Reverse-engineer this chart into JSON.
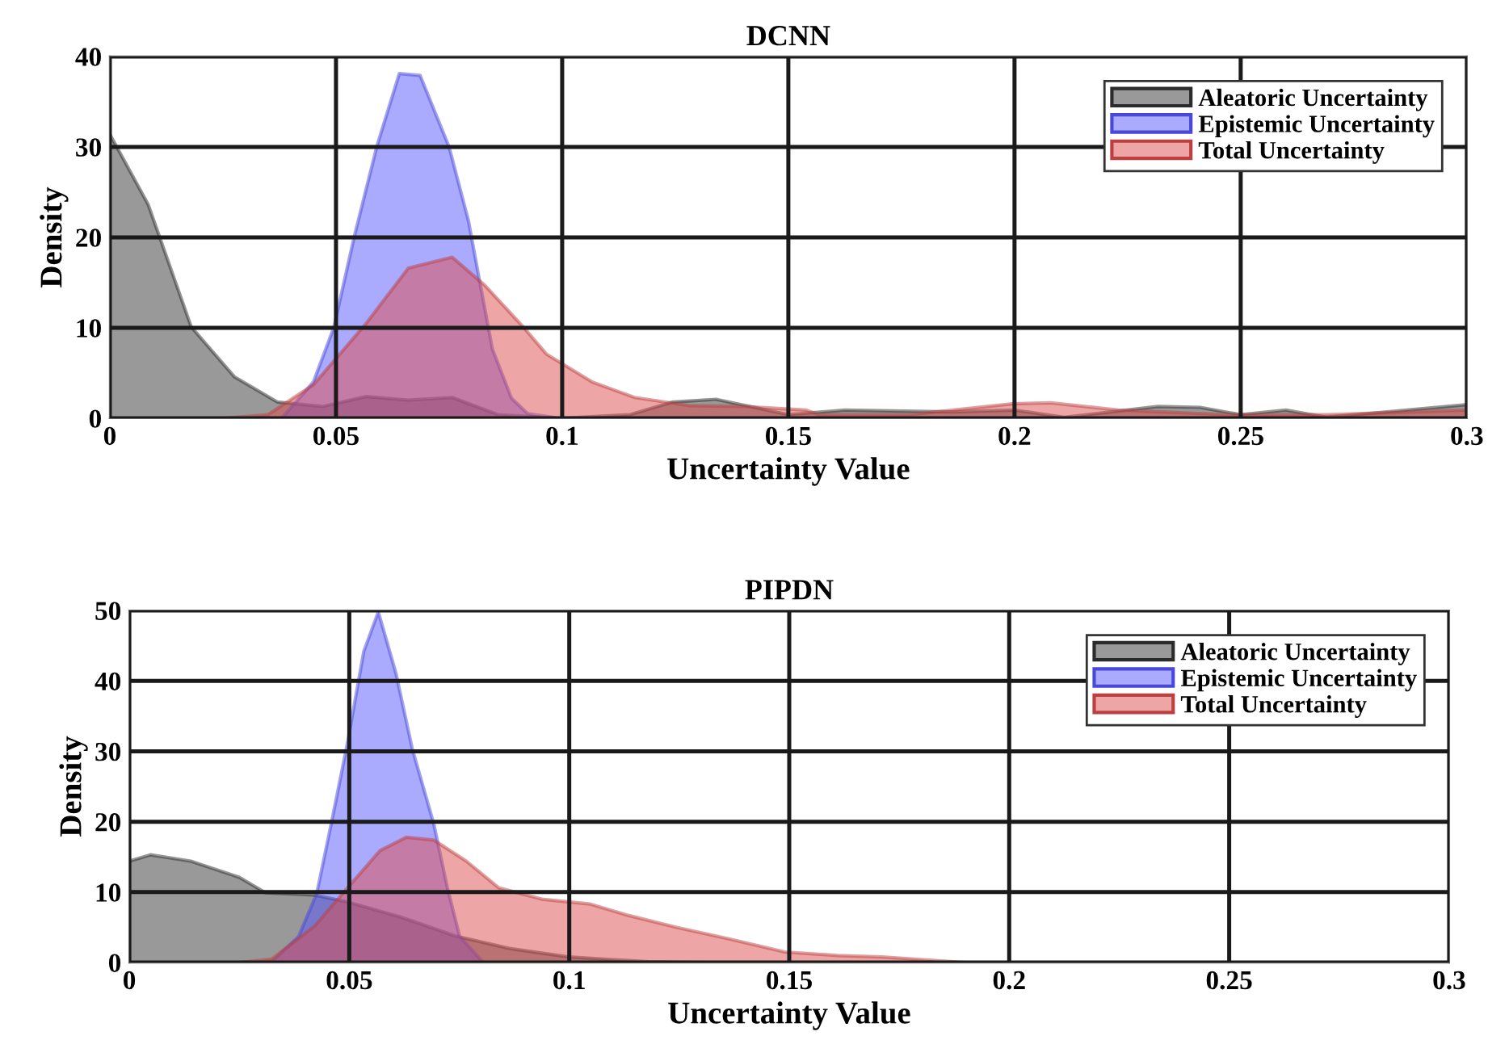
{
  "chart_data": [
    {
      "type": "area",
      "title": "DCNN",
      "xlabel": "Uncertainty Value",
      "ylabel": "Density",
      "xlim": [
        0,
        0.3
      ],
      "ylim": [
        0,
        40
      ],
      "xticks": [
        0,
        0.05,
        0.1,
        0.15,
        0.2,
        0.25,
        0.3
      ],
      "yticks": [
        0,
        10,
        20,
        30,
        40
      ],
      "grid": true,
      "legend": "top right",
      "series": [
        {
          "name": "Aleatoric Uncertainty",
          "color": "#999999",
          "x": [
            0,
            0.0085,
            0.018,
            0.0275,
            0.037,
            0.047,
            0.0567,
            0.066,
            0.0757,
            0.0858,
            0.0995,
            0.115,
            0.1245,
            0.134,
            0.15,
            0.1625,
            0.186,
            0.2,
            0.211,
            0.2317,
            0.241,
            0.25,
            0.26,
            0.269,
            0.3
          ],
          "values": [
            31.4,
            23.6,
            10.1,
            4.6,
            1.8,
            1.3,
            2.4,
            2.0,
            2.3,
            0.4,
            0,
            0.4,
            1.8,
            2.1,
            0.4,
            0.9,
            0.7,
            0.9,
            0.1,
            1.3,
            1.2,
            0.4,
            0.9,
            0.1,
            1.5
          ]
        },
        {
          "name": "Epistemic Uncertainty",
          "color": "#aaaaff",
          "x": [
            0.038,
            0.045,
            0.0495,
            0.054,
            0.059,
            0.064,
            0.0665,
            0.0686,
            0.075,
            0.0793,
            0.0817,
            0.0846,
            0.0888,
            0.0924,
            0.0995
          ],
          "values": [
            0,
            4,
            10,
            20,
            30,
            38.1,
            38,
            37.9,
            30,
            21.8,
            15.3,
            7.6,
            2.2,
            0.5,
            0
          ]
        },
        {
          "name": "Total Uncertainty",
          "color": "#eea5a5",
          "x": [
            0.025,
            0.035,
            0.045,
            0.0567,
            0.066,
            0.0757,
            0.0829,
            0.0912,
            0.0965,
            0.1067,
            0.116,
            0.128,
            0.14,
            0.154,
            0.1567,
            0.177,
            0.1995,
            0.208,
            0.223,
            0.247,
            0.269,
            0.3
          ],
          "values": [
            0,
            0.4,
            3.7,
            10.5,
            16.6,
            17.8,
            14.7,
            10.2,
            7.1,
            4,
            2.3,
            1.4,
            1.3,
            0.9,
            0.4,
            0.4,
            1.6,
            1.7,
            0.9,
            0.4,
            0.4,
            0.9
          ]
        }
      ]
    },
    {
      "type": "area",
      "title": "PIPDN",
      "xlabel": "Uncertainty Value",
      "ylabel": "Density",
      "xlim": [
        0,
        0.3
      ],
      "ylim": [
        0,
        50
      ],
      "xticks": [
        0,
        0.05,
        0.1,
        0.15,
        0.2,
        0.25,
        0.3
      ],
      "yticks": [
        0,
        10,
        20,
        30,
        40,
        50
      ],
      "grid": true,
      "legend": "top right",
      "series": [
        {
          "name": "Aleatoric Uncertainty",
          "color": "#999999",
          "x": [
            0,
            0.0048,
            0.014,
            0.025,
            0.031,
            0.042,
            0.0496,
            0.062,
            0.074,
            0.0864,
            0.0999,
            0.118,
            0.132
          ],
          "values": [
            14.4,
            15.3,
            14.4,
            12.1,
            9.9,
            9.6,
            8.6,
            6.4,
            3.8,
            2.0,
            0.8,
            0.1,
            0
          ]
        },
        {
          "name": "Epistemic Uncertainty",
          "color": "#aaaaff",
          "x": [
            0.0324,
            0.0385,
            0.0426,
            0.0459,
            0.0496,
            0.0533,
            0.0566,
            0.0606,
            0.0643,
            0.0692,
            0.0723,
            0.0751,
            0.0803
          ],
          "values": [
            0.1,
            3.7,
            9.8,
            19.7,
            31.2,
            44.2,
            49.8,
            41.1,
            30.4,
            19.7,
            10.6,
            3.7,
            0.1
          ]
        },
        {
          "name": "Total Uncertainty",
          "color": "#eea5a5",
          "x": [
            0.025,
            0.0324,
            0.0422,
            0.0496,
            0.057,
            0.063,
            0.0692,
            0.0766,
            0.084,
            0.0938,
            0.1048,
            0.1134,
            0.1244,
            0.1367,
            0.149,
            0.161,
            0.171,
            0.19
          ],
          "values": [
            0,
            0.5,
            5.2,
            10.6,
            15.9,
            17.8,
            17.4,
            14.4,
            10.6,
            9.0,
            8.3,
            6.7,
            5.0,
            3.3,
            1.5,
            1.0,
            0.8,
            0
          ]
        }
      ]
    }
  ]
}
